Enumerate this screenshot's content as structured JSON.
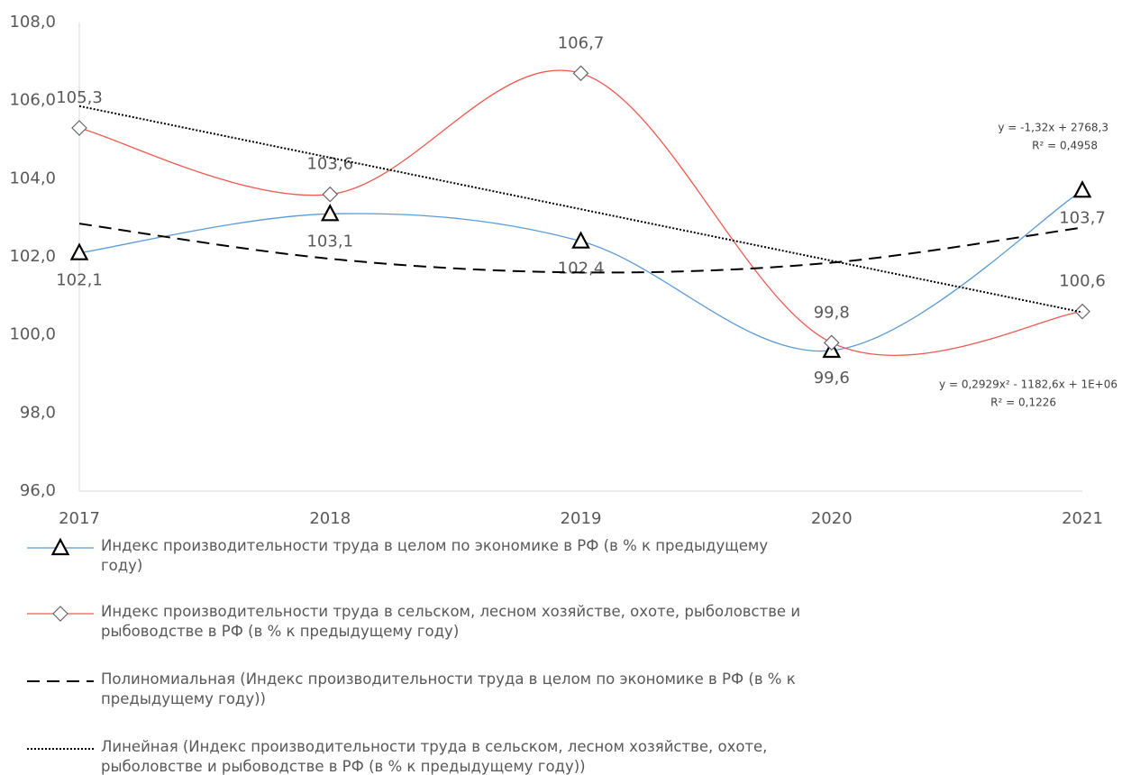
{
  "chart_data": {
    "type": "line",
    "categories": [
      "2017",
      "2018",
      "2019",
      "2020",
      "2021"
    ],
    "ylim": [
      96,
      108
    ],
    "yticks": [
      {
        "value": 96,
        "label": "96,0"
      },
      {
        "value": 98,
        "label": "98,0"
      },
      {
        "value": 100,
        "label": "100,0"
      },
      {
        "value": 102,
        "label": "102,0"
      },
      {
        "value": 104,
        "label": "104,0"
      },
      {
        "value": 106,
        "label": "106,0"
      },
      {
        "value": 108,
        "label": "108,0"
      }
    ],
    "grid": false,
    "legend": "bottom",
    "series": [
      {
        "name": "Индекс производительности труда в целом по экономике в РФ (в % к предыдущему году)",
        "color": "#5b9bd5",
        "style": "solid",
        "marker": "triangle",
        "smooth": true,
        "label_position": "below",
        "values": [
          102.1,
          103.1,
          102.4,
          99.6,
          103.7
        ],
        "value_labels": [
          "102,1",
          "103,1",
          "102,4",
          "99,6",
          "103,7"
        ]
      },
      {
        "name": "Индекс производительности труда в сельском, лесном хозяйстве, охоте, рыболовстве и рыбоводстве в РФ (в % к предыдущему году)",
        "color": "#ee5a50",
        "style": "solid",
        "marker": "diamond",
        "smooth": true,
        "label_position": "above",
        "values": [
          105.3,
          103.6,
          106.7,
          99.8,
          100.6
        ],
        "value_labels": [
          "105,3",
          "103,6",
          "106,7",
          "99,8",
          "100,6"
        ]
      },
      {
        "name": "Полиномиальная (Индекс производительности труда в целом по экономике в РФ (в % к предыдущему году))",
        "color": "#000000",
        "style": "dashed",
        "smooth": true,
        "values": [
          102.85,
          101.95,
          101.6,
          101.85,
          102.75
        ]
      },
      {
        "name": "Линейная (Индекс производительности труда в сельском, лесном хозяйстве, охоте, рыболовстве и рыбоводстве в РФ (в % к предыдущему году))",
        "color": "#000000",
        "style": "dotted",
        "smooth": false,
        "values": [
          105.86,
          104.54,
          103.22,
          101.9,
          100.58
        ]
      }
    ],
    "annotations": [
      "y = -1,32x + 2768,3",
      "R² = 0,4958",
      "y = 0,2929x² - 1182,6x + 1E+06",
      "R² = 0,1226"
    ]
  }
}
